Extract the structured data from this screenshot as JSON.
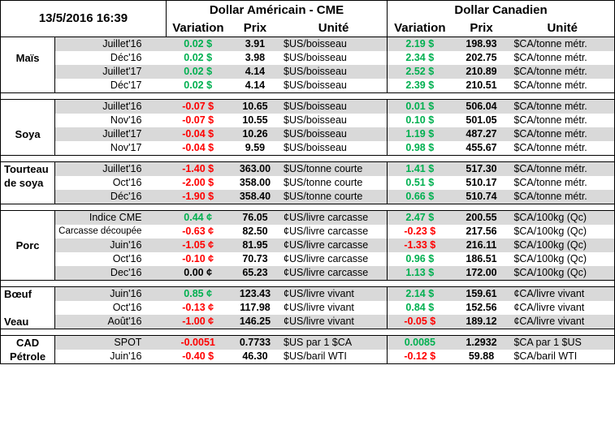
{
  "header": {
    "datetime": "13/5/2016 16:39",
    "us_group": "Dollar Américain - CME",
    "ca_group": "Dollar Canadien",
    "columns": {
      "variation": "Variation",
      "price": "Prix",
      "unit": "Unité"
    }
  },
  "colors": {
    "positive": "#00b050",
    "negative": "#ff0000",
    "shade": "#d9d9d9"
  },
  "groups": [
    {
      "name": "Maïs",
      "label_row": 1,
      "label_align": "center",
      "rows": [
        {
          "contract": "Juillet'16",
          "us_var": "0.02 $",
          "us_sign": "pos",
          "us_price": "3.91",
          "us_unit": "$US/boisseau",
          "ca_var": "2.19 $",
          "ca_sign": "pos",
          "ca_price": "198.93",
          "ca_unit": "$CA/tonne métr."
        },
        {
          "contract": "Déc'16",
          "us_var": "0.02 $",
          "us_sign": "pos",
          "us_price": "3.98",
          "us_unit": "$US/boisseau",
          "ca_var": "2.34 $",
          "ca_sign": "pos",
          "ca_price": "202.75",
          "ca_unit": "$CA/tonne métr."
        },
        {
          "contract": "Juillet'17",
          "us_var": "0.02 $",
          "us_sign": "pos",
          "us_price": "4.14",
          "us_unit": "$US/boisseau",
          "ca_var": "2.52 $",
          "ca_sign": "pos",
          "ca_price": "210.89",
          "ca_unit": "$CA/tonne métr."
        },
        {
          "contract": "Déc'17",
          "us_var": "0.02 $",
          "us_sign": "pos",
          "us_price": "4.14",
          "us_unit": "$US/boisseau",
          "ca_var": "2.39 $",
          "ca_sign": "pos",
          "ca_price": "210.51",
          "ca_unit": "$CA/tonne métr."
        }
      ]
    },
    {
      "name": "Soya",
      "label_row": 2,
      "label_align": "center",
      "rows": [
        {
          "contract": "Juillet'16",
          "us_var": "-0.07 $",
          "us_sign": "neg",
          "us_price": "10.65",
          "us_unit": "$US/boisseau",
          "ca_var": "0.01 $",
          "ca_sign": "pos",
          "ca_price": "506.04",
          "ca_unit": "$CA/tonne métr."
        },
        {
          "contract": "Nov'16",
          "us_var": "-0.07 $",
          "us_sign": "neg",
          "us_price": "10.55",
          "us_unit": "$US/boisseau",
          "ca_var": "0.10 $",
          "ca_sign": "pos",
          "ca_price": "501.05",
          "ca_unit": "$CA/tonne métr."
        },
        {
          "contract": "Juillet'17",
          "us_var": "-0.04 $",
          "us_sign": "neg",
          "us_price": "10.26",
          "us_unit": "$US/boisseau",
          "ca_var": "1.19 $",
          "ca_sign": "pos",
          "ca_price": "487.27",
          "ca_unit": "$CA/tonne métr."
        },
        {
          "contract": "Nov'17",
          "us_var": "-0.04 $",
          "us_sign": "neg",
          "us_price": "9.59",
          "us_unit": "$US/boisseau",
          "ca_var": "0.98 $",
          "ca_sign": "pos",
          "ca_price": "455.67",
          "ca_unit": "$CA/tonne métr."
        }
      ]
    },
    {
      "name": "Tourteau",
      "name2": "de soya",
      "label_row": 0,
      "label_align": "left",
      "rows": [
        {
          "contract": "Juillet'16",
          "us_var": "-1.40 $",
          "us_sign": "neg",
          "us_price": "363.00",
          "us_unit": "$US/tonne courte",
          "ca_var": "1.41 $",
          "ca_sign": "pos",
          "ca_price": "517.30",
          "ca_unit": "$CA/tonne métr."
        },
        {
          "contract": "Oct'16",
          "us_var": "-2.00 $",
          "us_sign": "neg",
          "us_price": "358.00",
          "us_unit": "$US/tonne courte",
          "ca_var": "0.51 $",
          "ca_sign": "pos",
          "ca_price": "510.17",
          "ca_unit": "$CA/tonne métr."
        },
        {
          "contract": "Déc'16",
          "us_var": "-1.90 $",
          "us_sign": "neg",
          "us_price": "358.40",
          "us_unit": "$US/tonne courte",
          "ca_var": "0.66 $",
          "ca_sign": "pos",
          "ca_price": "510.74",
          "ca_unit": "$CA/tonne métr."
        }
      ]
    },
    {
      "name": "Porc",
      "label_row": 2,
      "label_align": "center",
      "rows": [
        {
          "contract": "Indice CME",
          "us_var": "0.44 ¢",
          "us_sign": "pos",
          "us_price": "76.05",
          "us_unit": "¢US/livre carcasse",
          "ca_var": "2.47 $",
          "ca_sign": "pos",
          "ca_price": "200.55",
          "ca_unit": "$CA/100kg (Qc)"
        },
        {
          "contract": "Carcasse découpée",
          "us_var": "-0.63 ¢",
          "us_sign": "neg",
          "us_price": "82.50",
          "us_unit": "¢US/livre carcasse",
          "ca_var": "-0.23 $",
          "ca_sign": "neg",
          "ca_price": "217.56",
          "ca_unit": "$CA/100kg (Qc)"
        },
        {
          "contract": "Juin'16",
          "us_var": "-1.05 ¢",
          "us_sign": "neg",
          "us_price": "81.95",
          "us_unit": "¢US/livre carcasse",
          "ca_var": "-1.33 $",
          "ca_sign": "neg",
          "ca_price": "216.11",
          "ca_unit": "$CA/100kg (Qc)"
        },
        {
          "contract": "Oct'16",
          "us_var": "-0.10 ¢",
          "us_sign": "neg",
          "us_price": "70.73",
          "us_unit": "¢US/livre carcasse",
          "ca_var": "0.96 $",
          "ca_sign": "pos",
          "ca_price": "186.51",
          "ca_unit": "$CA/100kg (Qc)"
        },
        {
          "contract": "Dec'16",
          "us_var": "0.00 ¢",
          "us_sign": "zero",
          "us_price": "65.23",
          "us_unit": "¢US/livre carcasse",
          "ca_var": "1.13 $",
          "ca_sign": "pos",
          "ca_price": "172.00",
          "ca_unit": "$CA/100kg (Qc)"
        }
      ]
    },
    {
      "name": "Bœuf",
      "name3": "Veau",
      "label_row": 0,
      "label_align": "left",
      "rows": [
        {
          "contract": "Juin'16",
          "us_var": "0.85 ¢",
          "us_sign": "pos",
          "us_price": "123.43",
          "us_unit": "¢US/livre vivant",
          "ca_var": "2.14 $",
          "ca_sign": "pos",
          "ca_price": "159.61",
          "ca_unit": "¢CA/livre vivant"
        },
        {
          "contract": "Oct'16",
          "us_var": "-0.13 ¢",
          "us_sign": "neg",
          "us_price": "117.98",
          "us_unit": "¢US/livre vivant",
          "ca_var": "0.84 $",
          "ca_sign": "pos",
          "ca_price": "152.56",
          "ca_unit": "¢CA/livre vivant"
        },
        {
          "contract": "Août'16",
          "us_var": "-1.00 ¢",
          "us_sign": "neg",
          "us_price": "146.25",
          "us_unit": "¢US/livre vivant",
          "ca_var": "-0.05 $",
          "ca_sign": "neg",
          "ca_price": "189.12",
          "ca_unit": "¢CA/livre vivant"
        }
      ]
    },
    {
      "name": "CAD",
      "name2": "Pétrole",
      "label_row": 0,
      "label_align": "center",
      "rows": [
        {
          "contract": "SPOT",
          "us_var": "-0.0051",
          "us_sign": "neg",
          "us_price": "0.7733",
          "us_unit": "$US par 1 $CA",
          "ca_var": "0.0085",
          "ca_sign": "pos",
          "ca_price": "1.2932",
          "ca_unit": "$CA par 1 $US"
        },
        {
          "contract": "Juin'16",
          "us_var": "-0.40 $",
          "us_sign": "neg",
          "us_price": "46.30",
          "us_unit": "$US/baril WTI",
          "ca_var": "-0.12 $",
          "ca_sign": "neg",
          "ca_price": "59.88",
          "ca_unit": "$CA/baril WTI"
        }
      ]
    }
  ]
}
